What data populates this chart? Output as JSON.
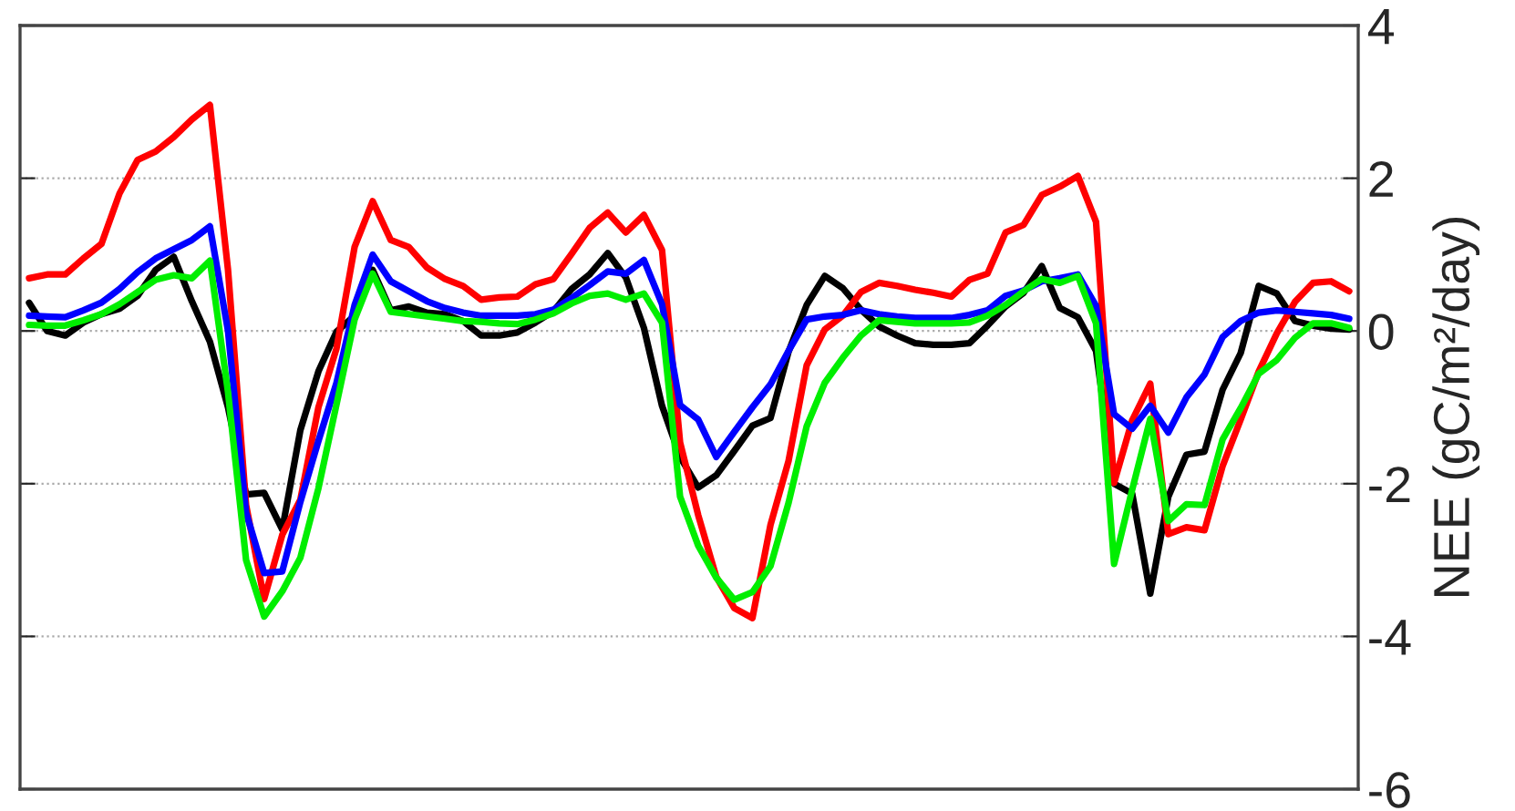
{
  "chart_data": {
    "type": "line",
    "ylabel": "NEE (gC/m²/day)",
    "ylim": [
      -6,
      4
    ],
    "yticks": [
      -6,
      -4,
      -2,
      0,
      2,
      4
    ],
    "categories": [
      null,
      null,
      null,
      null,
      null,
      null,
      null,
      null,
      null,
      null,
      null,
      null,
      null,
      null,
      null,
      null,
      null,
      null,
      null,
      null,
      null,
      null,
      null,
      null,
      null,
      null,
      null,
      null,
      null,
      null,
      null,
      null,
      null,
      null,
      null,
      null,
      null,
      null,
      null,
      null,
      null,
      null,
      null,
      null,
      null,
      null,
      null,
      null,
      null,
      null,
      null,
      null,
      null,
      null,
      null,
      null,
      null,
      null,
      null,
      null,
      null,
      null,
      null,
      null,
      null,
      null,
      null,
      null,
      null,
      null,
      null,
      null,
      null,
      null
    ],
    "grid": "y",
    "tick_labels": "y",
    "line_style": "solid",
    "marker": "none",
    "series": [
      {
        "color": "#000000",
        "values": [
          0.37,
          0.0,
          -0.06,
          0.11,
          0.22,
          0.29,
          0.46,
          0.8,
          0.97,
          0.39,
          -0.14,
          -1.0,
          -2.14,
          -2.12,
          -2.6,
          -1.3,
          -0.53,
          -0.01,
          0.2,
          0.8,
          0.27,
          0.32,
          0.24,
          0.22,
          0.13,
          -0.06,
          -0.06,
          -0.02,
          0.11,
          0.26,
          0.55,
          0.74,
          1.02,
          0.7,
          0.04,
          -0.98,
          -1.65,
          -2.05,
          -1.89,
          -1.57,
          -1.24,
          -1.14,
          -0.27,
          0.34,
          0.72,
          0.56,
          0.28,
          0.06,
          -0.06,
          -0.16,
          -0.18,
          -0.18,
          -0.16,
          0.07,
          0.32,
          0.5,
          0.85,
          0.3,
          0.18,
          -0.26,
          -2.0,
          -2.13,
          -3.44,
          -2.17,
          -1.62,
          -1.58,
          -0.77,
          -0.29,
          0.59,
          0.49,
          0.13,
          0.07,
          0.03,
          0.02
        ]
      },
      {
        "color": "#ff0000",
        "values": [
          0.69,
          0.74,
          0.74,
          0.95,
          1.14,
          1.8,
          2.24,
          2.35,
          2.54,
          2.77,
          2.96,
          0.8,
          -2.28,
          -3.51,
          -2.67,
          -2.21,
          -1.0,
          -0.23,
          1.1,
          1.7,
          1.19,
          1.1,
          0.83,
          0.68,
          0.59,
          0.41,
          0.44,
          0.45,
          0.61,
          0.68,
          1.01,
          1.35,
          1.55,
          1.29,
          1.52,
          1.06,
          -1.46,
          -2.41,
          -3.22,
          -3.63,
          -3.76,
          -2.54,
          -1.7,
          -0.45,
          0.02,
          0.2,
          0.51,
          0.63,
          0.59,
          0.54,
          0.5,
          0.45,
          0.67,
          0.75,
          1.29,
          1.39,
          1.78,
          1.89,
          2.03,
          1.43,
          -1.99,
          -1.17,
          -0.69,
          -2.66,
          -2.57,
          -2.61,
          -1.77,
          -1.16,
          -0.53,
          -0.03,
          0.38,
          0.63,
          0.65,
          0.52
        ]
      },
      {
        "color": "#0000ff",
        "values": [
          0.2,
          0.19,
          0.18,
          0.27,
          0.37,
          0.55,
          0.77,
          0.95,
          1.07,
          1.19,
          1.37,
          0.0,
          -2.38,
          -3.17,
          -3.15,
          -2.24,
          -1.44,
          -0.68,
          0.34,
          1.0,
          0.65,
          0.52,
          0.39,
          0.3,
          0.24,
          0.2,
          0.2,
          0.2,
          0.22,
          0.28,
          0.43,
          0.6,
          0.78,
          0.75,
          0.93,
          0.35,
          -0.97,
          -1.16,
          -1.65,
          -1.32,
          -1.0,
          -0.7,
          -0.26,
          0.15,
          0.19,
          0.21,
          0.27,
          0.22,
          0.19,
          0.17,
          0.17,
          0.17,
          0.21,
          0.27,
          0.46,
          0.53,
          0.65,
          0.69,
          0.74,
          0.33,
          -1.09,
          -1.28,
          -0.98,
          -1.33,
          -0.87,
          -0.57,
          -0.08,
          0.13,
          0.24,
          0.27,
          0.25,
          0.23,
          0.21,
          0.16
        ]
      },
      {
        "color": "#00ee00",
        "values": [
          0.08,
          0.07,
          0.07,
          0.14,
          0.22,
          0.35,
          0.51,
          0.67,
          0.73,
          0.69,
          0.92,
          -0.8,
          -3.0,
          -3.74,
          -3.41,
          -2.97,
          -2.06,
          -0.96,
          0.15,
          0.75,
          0.25,
          0.22,
          0.19,
          0.16,
          0.13,
          0.12,
          0.1,
          0.09,
          0.15,
          0.23,
          0.36,
          0.46,
          0.49,
          0.41,
          0.49,
          0.11,
          -2.17,
          -2.81,
          -3.23,
          -3.52,
          -3.42,
          -3.08,
          -2.25,
          -1.25,
          -0.68,
          -0.35,
          -0.06,
          0.14,
          0.12,
          0.1,
          0.1,
          0.1,
          0.11,
          0.2,
          0.34,
          0.52,
          0.68,
          0.63,
          0.72,
          0.1,
          -3.05,
          -2.08,
          -1.15,
          -2.49,
          -2.27,
          -2.28,
          -1.42,
          -1.01,
          -0.56,
          -0.38,
          -0.09,
          0.1,
          0.1,
          0.04
        ]
      }
    ]
  }
}
